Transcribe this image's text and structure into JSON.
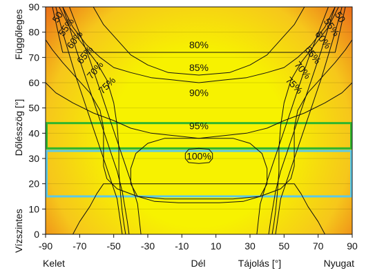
{
  "chart_data": {
    "type": "heatmap",
    "y_axis": {
      "label": "Dőlésszög [°]",
      "top_label": "Függőleges",
      "bottom_label": "Vízszintes",
      "ticks": [
        0,
        10,
        20,
        30,
        40,
        50,
        60,
        70,
        80,
        90
      ],
      "range": [
        0,
        90
      ]
    },
    "x_axis": {
      "label": "Tájolás [°]",
      "ticks": [
        -90,
        -70,
        -50,
        -30,
        -10,
        10,
        30,
        50,
        70,
        90
      ],
      "range": [
        -90,
        90
      ],
      "direction_labels": {
        "east": "Kelet",
        "south": "Dél",
        "west": "Nyugat"
      }
    },
    "contours": [
      {
        "level": 50,
        "label": "50",
        "symmetric": true,
        "points": [
          [
            -86,
            90
          ],
          [
            -84,
            84
          ],
          [
            -82,
            78
          ],
          [
            -80,
            72
          ]
        ]
      },
      {
        "level": 55,
        "label": "55%",
        "symmetric": true,
        "points": [
          [
            -84,
            90
          ],
          [
            -80,
            80
          ],
          [
            -76,
            71
          ],
          [
            -72,
            62
          ],
          [
            -68,
            54
          ],
          [
            -64,
            46
          ],
          [
            -60,
            38
          ],
          [
            -56,
            30
          ],
          [
            -52,
            22
          ],
          [
            -48,
            14
          ],
          [
            -45,
            0
          ]
        ]
      },
      {
        "level": 60,
        "label": "60%",
        "symmetric": true,
        "points": [
          [
            -80,
            90
          ],
          [
            -76,
            82
          ],
          [
            -72,
            73
          ],
          [
            -68,
            65
          ],
          [
            -64,
            57
          ],
          [
            -60,
            49
          ],
          [
            -56,
            41
          ],
          [
            -52,
            33
          ],
          [
            -48,
            25
          ],
          [
            -45,
            17
          ],
          [
            -42,
            5
          ],
          [
            -41,
            0
          ]
        ]
      },
      {
        "level": 65,
        "label": "65%",
        "symmetric": true,
        "points": [
          [
            -76,
            90
          ],
          [
            -72,
            83
          ],
          [
            -68,
            76
          ],
          [
            -64,
            69
          ],
          [
            -60,
            61
          ],
          [
            -56,
            53
          ],
          [
            -52,
            45
          ],
          [
            -48,
            37
          ],
          [
            -44,
            29
          ],
          [
            -40,
            21
          ],
          [
            -36,
            12
          ],
          [
            -34,
            0
          ]
        ]
      },
      {
        "level": 70,
        "label": "70%",
        "symmetric": true,
        "points": [
          [
            -82,
            90
          ],
          [
            -76,
            82
          ],
          [
            -68,
            75
          ],
          [
            -60,
            68
          ],
          [
            -54,
            61
          ],
          [
            -50,
            52
          ],
          [
            -48,
            43
          ],
          [
            -47,
            34
          ],
          [
            -47,
            25
          ],
          [
            -46,
            16
          ],
          [
            -45,
            9
          ],
          [
            -44,
            4
          ],
          [
            -43,
            0
          ]
        ]
      },
      {
        "level": 75,
        "label": "75%",
        "symmetric": true,
        "points": [
          [
            -90,
            77
          ],
          [
            -86,
            73
          ],
          [
            -80,
            68
          ],
          [
            -72,
            62
          ],
          [
            -64,
            56
          ],
          [
            -58,
            49
          ],
          [
            -56,
            42
          ],
          [
            -56,
            34
          ],
          [
            -56,
            27
          ],
          [
            -54,
            22
          ],
          [
            -48,
            18
          ],
          [
            -36,
            15
          ],
          [
            -20,
            14
          ],
          [
            0,
            14
          ]
        ]
      },
      {
        "level": 80,
        "label": "80%",
        "symmetric": true,
        "points": [
          [
            -62,
            90
          ],
          [
            -56,
            83
          ],
          [
            -48,
            77
          ],
          [
            -40,
            71
          ],
          [
            -30,
            67
          ],
          [
            -18,
            64
          ],
          [
            0,
            63
          ]
        ]
      },
      {
        "level": 85,
        "label": "85%",
        "symmetric": true,
        "points": [
          [
            -80,
            90
          ],
          [
            -74,
            82
          ],
          [
            -66,
            75
          ],
          [
            -58,
            70
          ],
          [
            -50,
            66
          ],
          [
            -40,
            64
          ],
          [
            -28,
            62
          ],
          [
            -14,
            61
          ],
          [
            0,
            60
          ]
        ]
      },
      {
        "level": 90,
        "label": "90%",
        "symmetric": true,
        "points": [
          [
            -90,
            60
          ],
          [
            -84,
            56
          ],
          [
            -74,
            52
          ],
          [
            -62,
            48
          ],
          [
            -50,
            45
          ],
          [
            -40,
            42
          ],
          [
            -28,
            40
          ],
          [
            -14,
            39
          ],
          [
            0,
            38
          ]
        ]
      },
      {
        "level": 95,
        "label": "95%",
        "symmetric": true,
        "points": [
          [
            0,
            38
          ],
          [
            -20,
            38
          ],
          [
            -30,
            36
          ],
          [
            -37,
            32
          ],
          [
            -40,
            26
          ],
          [
            -40,
            20
          ],
          [
            -36,
            15
          ],
          [
            -26,
            13
          ],
          [
            -12,
            12.5
          ],
          [
            0,
            12.5
          ]
        ]
      },
      {
        "level": 100,
        "label": "100%",
        "symmetric": true,
        "points": [
          [
            0,
            34
          ],
          [
            -6,
            33.6
          ],
          [
            -8,
            32
          ],
          [
            -8,
            30
          ],
          [
            -6,
            28.4
          ],
          [
            0,
            28
          ]
        ]
      },
      {
        "level": 100.5,
        "label": "",
        "symmetric": true,
        "points": [
          [
            0,
            20
          ],
          [
            -56,
            20
          ],
          [
            -60,
            16
          ],
          [
            -64,
            11
          ],
          [
            -70,
            5
          ],
          [
            -74,
            0
          ]
        ]
      }
    ],
    "highlight_bands": [
      {
        "color": "#2db52d",
        "x_range": [
          -90,
          90
        ],
        "y_range": [
          34,
          44
        ]
      },
      {
        "color": "#5bc8e8",
        "x_range": [
          -90,
          90
        ],
        "y_range": [
          15,
          33
        ]
      }
    ],
    "colors": {
      "max": "#f7f200",
      "mid": "#f6c71b",
      "min": "#ea6b19",
      "contour": "#111111"
    },
    "grid": true
  }
}
